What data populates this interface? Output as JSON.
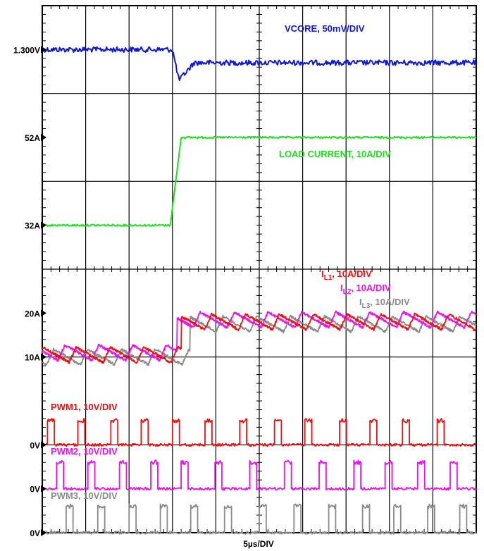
{
  "chart_data": {
    "type": "line",
    "subtype": "oscilloscope-capture",
    "title": "",
    "xlabel": "5µs/DIV",
    "x_divisions": 10,
    "y_divisions": 12,
    "grid": true,
    "y_markers": [
      {
        "label": "1.300V",
        "level_div": 1.0
      },
      {
        "label": "52A",
        "level_div": 3.0
      },
      {
        "label": "32A",
        "level_div": 5.0
      },
      {
        "label": "20A",
        "level_div": 7.0
      },
      {
        "label": "10A",
        "level_div": 8.0
      },
      {
        "label": "0V",
        "level_div": 10.0
      },
      {
        "label": "0V",
        "level_div": 11.0
      },
      {
        "label": "0V",
        "level_div": 12.0
      }
    ],
    "series": [
      {
        "key": "vcore",
        "name": "VCORE, 50mV/DIV",
        "color": "#1018d8",
        "before_level_div": 1.0,
        "after_level_div": 1.3,
        "undershoot_level_div": 1.7,
        "step_time_div": 3.0
      },
      {
        "key": "load",
        "name": "LOAD CURRENT, 10A/DIV",
        "color": "#1ee01e",
        "before_A": 32,
        "after_A": 52,
        "step_time_div": 3.0
      },
      {
        "key": "il1",
        "name": "IL1, 10A/DIV",
        "name_main": "I",
        "name_sub": "L1",
        "name_rest": ", 10A/DIV",
        "color": "#ee1010",
        "before_level_div": 7.95,
        "after_level_div": 7.2,
        "period_div": 0.78,
        "ripple_div": 0.35
      },
      {
        "key": "il2",
        "name": "IL2, 10A/DIV",
        "name_main": "I",
        "name_sub": "L2",
        "name_rest": ", 10A/DIV",
        "color": "#ee10ee",
        "before_level_div": 7.9,
        "after_level_div": 7.15,
        "period_div": 0.78,
        "ripple_div": 0.35
      },
      {
        "key": "il3",
        "name": "IL3, 10A/DIV",
        "name_main": "I",
        "name_sub": "L3",
        "name_rest": ", 10A/DIV",
        "color": "#8a8a8a",
        "before_level_div": 8.0,
        "after_level_div": 7.25,
        "period_div": 0.78,
        "ripple_div": 0.35
      },
      {
        "key": "pwm1",
        "name": "PWM1, 10V/DIV",
        "color": "#ee1010",
        "base_level_div": 10.0,
        "pulse_height_div": 0.55,
        "pulse_width_div": 0.16,
        "pulse_times_div": [
          0.12,
          0.82,
          1.58,
          2.28,
          3.0,
          3.75,
          4.55,
          5.35,
          6.05,
          6.85,
          7.55,
          8.3,
          9.1
        ]
      },
      {
        "key": "pwm2",
        "name": "PWM2, 10V/DIV",
        "color": "#ee10ee",
        "base_level_div": 11.0,
        "pulse_height_div": 0.6,
        "pulse_width_div": 0.16,
        "pulse_times_div": [
          0.33,
          1.05,
          1.78,
          2.5,
          3.2,
          3.98,
          4.78,
          5.58,
          6.38,
          7.18,
          7.9,
          8.65,
          9.4
        ]
      },
      {
        "key": "pwm3",
        "name": "PWM3, 10V/DIV",
        "color": "#8a8a8a",
        "base_level_div": 12.0,
        "pulse_height_div": 0.6,
        "pulse_width_div": 0.16,
        "pulse_times_div": [
          0.55,
          1.28,
          2.0,
          2.72,
          3.42,
          4.2,
          5.0,
          5.8,
          6.6,
          7.38,
          8.1,
          8.88,
          9.62
        ]
      }
    ]
  }
}
